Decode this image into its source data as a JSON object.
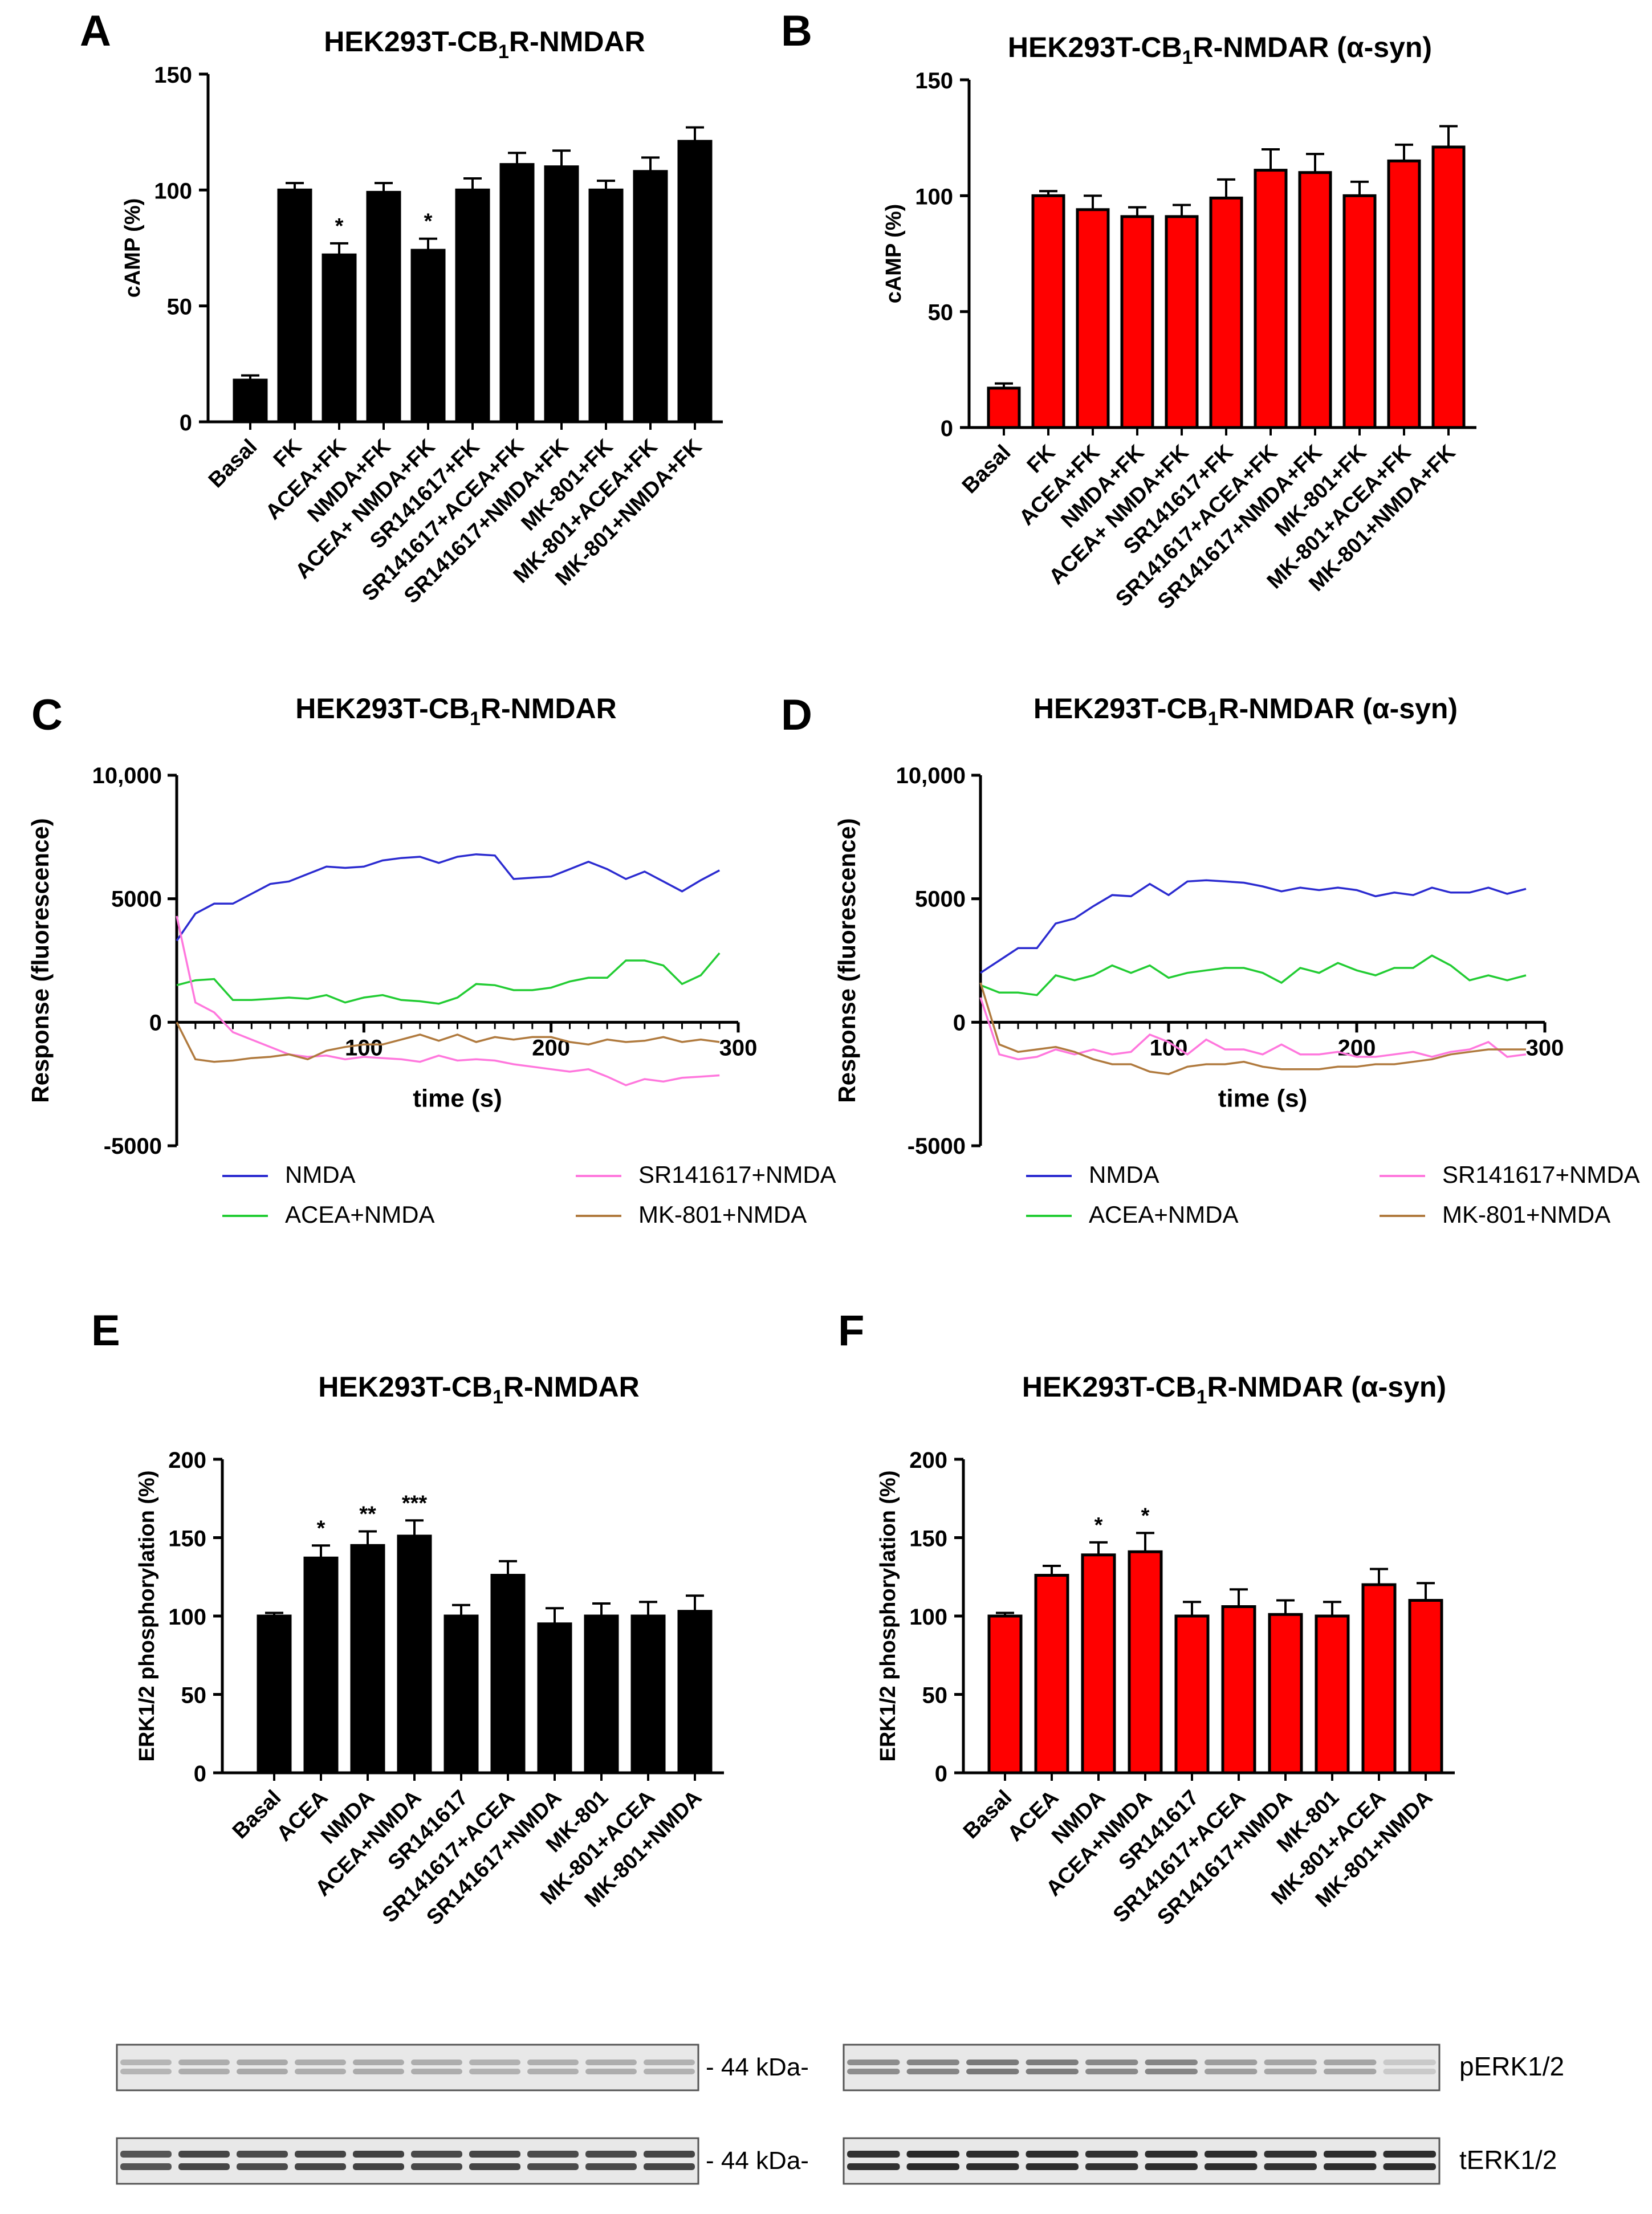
{
  "chart_data": [
    {
      "panel": "A",
      "type": "bar",
      "title": "HEK293T-CB",
      "title_sub": "1",
      "title_tail": "R-NMDAR",
      "ylabel": "cAMP (%)",
      "xlabel": "",
      "ylim": [
        0,
        150
      ],
      "yticks": [
        "0",
        "50",
        "100",
        "150"
      ],
      "bar_color": "#000000",
      "categories": [
        "Basal",
        "FK",
        "ACEA+FK",
        "NMDA+FK",
        "ACEA+ NMDA+FK",
        "SR141617+FK",
        "SR141617+ACEA+FK",
        "SR141617+NMDA+FK",
        "MK-801+FK",
        "MK-801+ACEA+FK",
        "MK-801+NMDA+FK"
      ],
      "values": [
        18,
        100,
        72,
        99,
        74,
        100,
        111,
        110,
        100,
        108,
        121
      ],
      "errors": [
        2,
        3,
        5,
        4,
        5,
        5,
        5,
        7,
        4,
        6,
        6
      ],
      "significance": [
        "",
        "",
        "*",
        "",
        "*",
        "",
        "",
        "",
        "",
        "",
        ""
      ]
    },
    {
      "panel": "B",
      "type": "bar",
      "title": "HEK293T-CB",
      "title_sub": "1",
      "title_tail": "R-NMDAR (α-syn)",
      "ylabel": "cAMP (%)",
      "xlabel": "",
      "ylim": [
        0,
        150
      ],
      "yticks": [
        "0",
        "50",
        "100",
        "150"
      ],
      "bar_color": "#ff0000",
      "categories": [
        "Basal",
        "FK",
        "ACEA+FK",
        "NMDA+FK",
        "ACEA+ NMDA+FK",
        "SR141617+FK",
        "SR141617+ACEA+FK",
        "SR141617+NMDA+FK",
        "MK-801+FK",
        "MK-801+ACEA+FK",
        "MK-801+NMDA+FK"
      ],
      "values": [
        17,
        100,
        94,
        91,
        91,
        99,
        111,
        110,
        100,
        115,
        121
      ],
      "errors": [
        2,
        2,
        6,
        4,
        5,
        8,
        9,
        8,
        6,
        7,
        9
      ],
      "significance": [
        "",
        "",
        "",
        "",
        "",
        "",
        "",
        "",
        "",
        "",
        ""
      ]
    },
    {
      "panel": "C",
      "type": "line",
      "title": "HEK293T-CB",
      "title_sub": "1",
      "title_tail": "R-NMDAR",
      "ylabel": "Response (fluorescence)",
      "xlabel": "time (s)",
      "xlim": [
        0,
        300
      ],
      "ylim": [
        -5000,
        10000
      ],
      "yticks": [
        "-5000",
        "0",
        "5000",
        "10,000"
      ],
      "xticks": [
        "100",
        "200",
        "300"
      ],
      "x": [
        0,
        10,
        20,
        30,
        40,
        50,
        60,
        70,
        80,
        90,
        100,
        110,
        120,
        130,
        140,
        150,
        160,
        170,
        180,
        190,
        200,
        210,
        220,
        230,
        240,
        250,
        260,
        270,
        280,
        290
      ],
      "series": [
        {
          "name": "NMDA",
          "color": "#2b2bd0",
          "values": [
            3300,
            4400,
            4800,
            4800,
            5200,
            5600,
            5700,
            6000,
            6300,
            6250,
            6300,
            6550,
            6650,
            6700,
            6450,
            6700,
            6800,
            6750,
            5800,
            5850,
            5900,
            6200,
            6500,
            6200,
            5800,
            6100,
            5700,
            5300,
            5750,
            6150
          ]
        },
        {
          "name": "ACEA+NMDA",
          "color": "#22cc33",
          "values": [
            1500,
            1700,
            1750,
            900,
            900,
            950,
            1000,
            950,
            1100,
            800,
            1000,
            1100,
            900,
            850,
            750,
            1000,
            1550,
            1500,
            1300,
            1300,
            1400,
            1650,
            1800,
            1800,
            2500,
            2500,
            2300,
            1550,
            1900,
            2800
          ]
        },
        {
          "name": "SR141617+NMDA",
          "color": "#ff77dd",
          "values": [
            4300,
            800,
            400,
            -400,
            -700,
            -1000,
            -1300,
            -1400,
            -1350,
            -1500,
            -1400,
            -1450,
            -1500,
            -1600,
            -1350,
            -1550,
            -1500,
            -1550,
            -1700,
            -1800,
            -1900,
            -2000,
            -1900,
            -2200,
            -2550,
            -2300,
            -2400,
            -2250,
            -2200,
            -2150
          ]
        },
        {
          "name": "MK-801+NMDA",
          "color": "#b07a3e",
          "values": [
            0,
            -1500,
            -1600,
            -1550,
            -1450,
            -1400,
            -1300,
            -1500,
            -1150,
            -1000,
            -900,
            -900,
            -700,
            -500,
            -750,
            -500,
            -800,
            -600,
            -700,
            -600,
            -600,
            -800,
            -900,
            -700,
            -800,
            -750,
            -600,
            -800,
            -700,
            -800
          ]
        }
      ],
      "legend_position": "bottom"
    },
    {
      "panel": "D",
      "type": "line",
      "title": "HEK293T-CB",
      "title_sub": "1",
      "title_tail": "R-NMDAR (α-syn)",
      "ylabel": "Response (fluorescence)",
      "xlabel": "time (s)",
      "xlim": [
        0,
        300
      ],
      "ylim": [
        -5000,
        10000
      ],
      "yticks": [
        "-5000",
        "0",
        "5000",
        "10,000"
      ],
      "xticks": [
        "100",
        "200",
        "300"
      ],
      "x": [
        0,
        10,
        20,
        30,
        40,
        50,
        60,
        70,
        80,
        90,
        100,
        110,
        120,
        130,
        140,
        150,
        160,
        170,
        180,
        190,
        200,
        210,
        220,
        230,
        240,
        250,
        260,
        270,
        280,
        290
      ],
      "series": [
        {
          "name": "NMDA",
          "color": "#2b2bd0",
          "values": [
            2000,
            2500,
            3000,
            3000,
            4000,
            4200,
            4700,
            5150,
            5100,
            5600,
            5150,
            5700,
            5750,
            5700,
            5650,
            5500,
            5300,
            5450,
            5350,
            5450,
            5350,
            5100,
            5250,
            5150,
            5450,
            5250,
            5250,
            5450,
            5200,
            5400
          ]
        },
        {
          "name": "ACEA+NMDA",
          "color": "#22cc33",
          "values": [
            1500,
            1200,
            1200,
            1100,
            1900,
            1700,
            1900,
            2300,
            2000,
            2300,
            1800,
            2000,
            2100,
            2200,
            2200,
            2000,
            1600,
            2200,
            2000,
            2400,
            2100,
            1900,
            2200,
            2200,
            2700,
            2300,
            1700,
            1900,
            1700,
            1900
          ]
        },
        {
          "name": "SR141617+NMDA",
          "color": "#ff77dd",
          "values": [
            1000,
            -1300,
            -1500,
            -1400,
            -1100,
            -1300,
            -1100,
            -1300,
            -1200,
            -500,
            -800,
            -1300,
            -700,
            -1100,
            -1100,
            -1300,
            -900,
            -1300,
            -1300,
            -1200,
            -1400,
            -1400,
            -1300,
            -1200,
            -1400,
            -1200,
            -1100,
            -800,
            -1400,
            -1300
          ]
        },
        {
          "name": "MK-801+NMDA",
          "color": "#b07a3e",
          "values": [
            1600,
            -900,
            -1200,
            -1100,
            -1000,
            -1200,
            -1500,
            -1700,
            -1700,
            -2000,
            -2100,
            -1800,
            -1700,
            -1700,
            -1600,
            -1800,
            -1900,
            -1900,
            -1900,
            -1800,
            -1800,
            -1700,
            -1700,
            -1600,
            -1500,
            -1300,
            -1200,
            -1100,
            -1100,
            -1100
          ]
        }
      ],
      "legend_position": "bottom"
    },
    {
      "panel": "E",
      "type": "bar",
      "title": "HEK293T-CB",
      "title_sub": "1",
      "title_tail": "R-NMDAR",
      "ylabel": "ERK1/2 phosphorylation (%)",
      "xlabel": "",
      "ylim": [
        0,
        200
      ],
      "yticks": [
        "0",
        "50",
        "100",
        "150",
        "200"
      ],
      "bar_color": "#000000",
      "categories": [
        "Basal",
        "ACEA",
        "NMDA",
        "ACEA+NMDA",
        "SR141617",
        "SR141617+ACEA",
        "SR141617+NMDA",
        "MK-801",
        "MK-801+ACEA",
        "MK-801+NMDA"
      ],
      "values": [
        100,
        137,
        145,
        151,
        100,
        126,
        95,
        100,
        100,
        103
      ],
      "errors": [
        2,
        8,
        9,
        10,
        7,
        9,
        10,
        8,
        9,
        10
      ],
      "significance": [
        "",
        "*",
        "**",
        "***",
        "",
        "",
        "",
        "",
        "",
        ""
      ]
    },
    {
      "panel": "F",
      "type": "bar",
      "title": "HEK293T-CB",
      "title_sub": "1",
      "title_tail": "R-NMDAR (α-syn)",
      "ylabel": "ERK1/2 phosphorylation (%)",
      "xlabel": "",
      "ylim": [
        0,
        200
      ],
      "yticks": [
        "0",
        "50",
        "100",
        "150",
        "200"
      ],
      "bar_color": "#ff0000",
      "categories": [
        "Basal",
        "ACEA",
        "NMDA",
        "ACEA+NMDA",
        "SR141617",
        "SR141617+ACEA",
        "SR141617+NMDA",
        "MK-801",
        "MK-801+ACEA",
        "MK-801+NMDA"
      ],
      "values": [
        100,
        126,
        139,
        141,
        100,
        106,
        101,
        100,
        120,
        110
      ],
      "errors": [
        2,
        6,
        8,
        12,
        9,
        11,
        9,
        9,
        10,
        11
      ],
      "significance": [
        "",
        "",
        "*",
        "*",
        "",
        "",
        "",
        "",
        "",
        ""
      ]
    }
  ],
  "blots": {
    "size_label": "- 44 kDa-",
    "rows": [
      {
        "label": "pERK1/2",
        "left_intensity": [
          0.22,
          0.26,
          0.28,
          0.26,
          0.27,
          0.26,
          0.24,
          0.25,
          0.26,
          0.24
        ],
        "right_intensity": [
          0.42,
          0.46,
          0.52,
          0.5,
          0.44,
          0.46,
          0.34,
          0.3,
          0.3,
          0.12
        ]
      },
      {
        "label": "tERK1/2",
        "left_intensity": [
          0.7,
          0.78,
          0.75,
          0.78,
          0.8,
          0.76,
          0.78,
          0.75,
          0.76,
          0.78
        ],
        "right_intensity": [
          0.88,
          0.92,
          0.9,
          0.9,
          0.88,
          0.9,
          0.9,
          0.88,
          0.9,
          0.9
        ]
      }
    ]
  }
}
